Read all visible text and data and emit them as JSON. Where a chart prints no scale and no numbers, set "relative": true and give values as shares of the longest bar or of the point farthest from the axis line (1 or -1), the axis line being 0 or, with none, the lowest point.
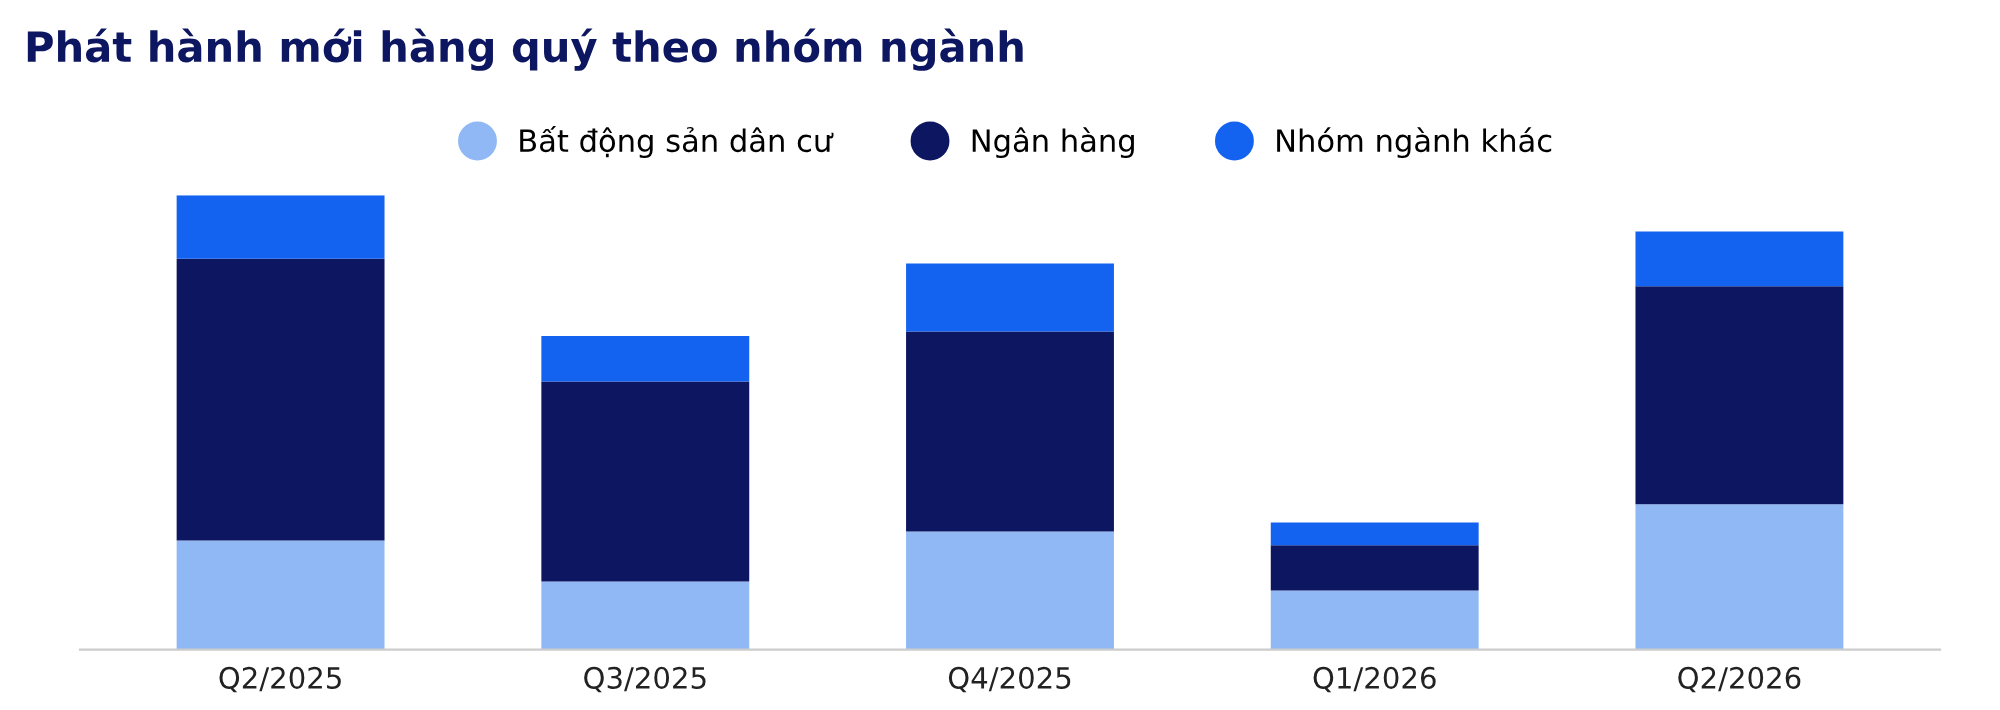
{
  "chart_data": {
    "type": "bar",
    "title": "Phát hành mới hàng quý theo nhóm ngành",
    "stacked": true,
    "relative": true,
    "legend": "top",
    "grid": false,
    "categories": [
      "Q2/2025",
      "Q3/2025",
      "Q4/2025",
      "Q1/2026",
      "Q2/2026"
    ],
    "series": [
      {
        "name": "Bất động sản dân cư",
        "color": "#8fb8f5",
        "values": [
          0.24,
          0.15,
          0.26,
          0.13,
          0.32
        ]
      },
      {
        "name": "Ngân hàng",
        "color": "#0d1660",
        "values": [
          0.62,
          0.44,
          0.44,
          0.1,
          0.48
        ]
      },
      {
        "name": "Nhóm ngành khác",
        "color": "#1463f0",
        "values": [
          0.14,
          0.1,
          0.15,
          0.05,
          0.12
        ]
      }
    ]
  }
}
